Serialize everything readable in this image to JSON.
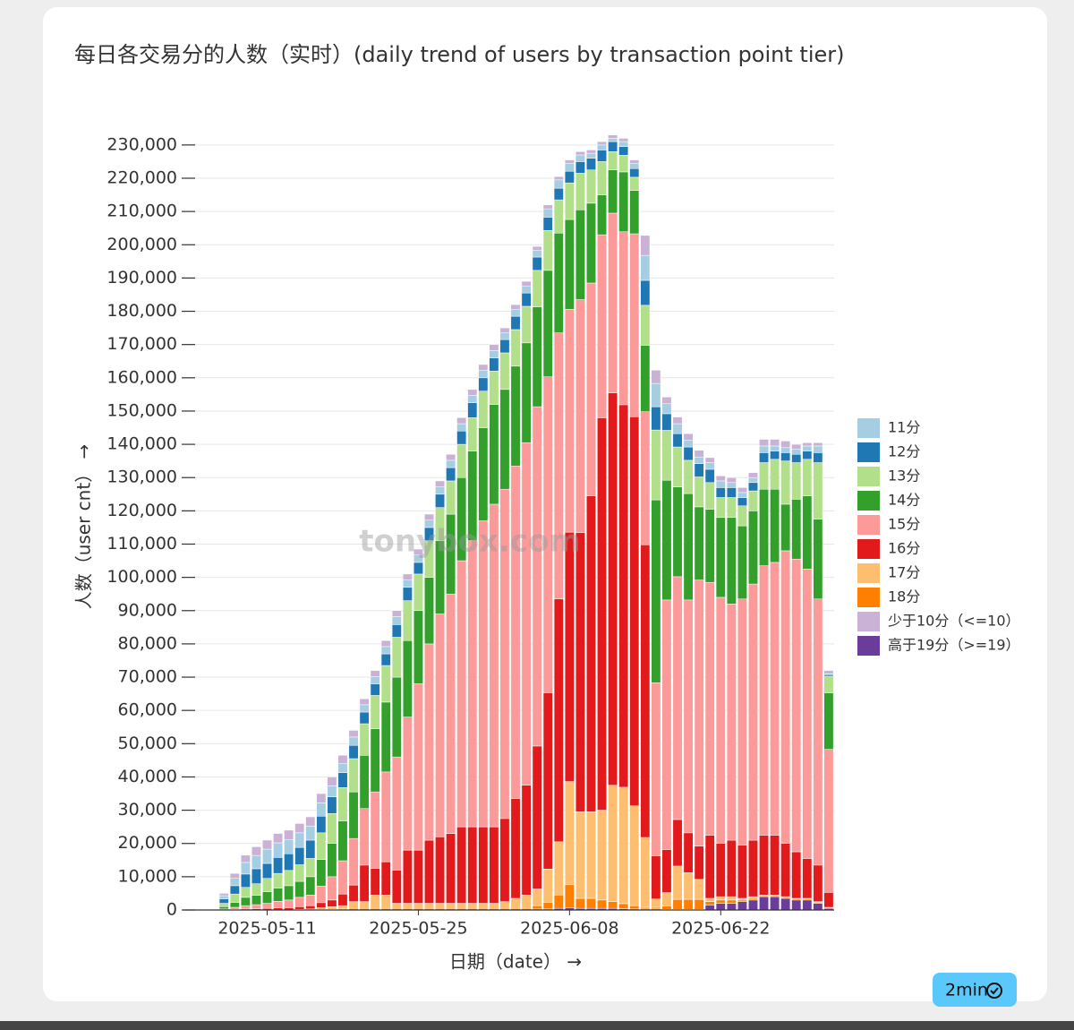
{
  "chart_data": {
    "type": "stacked_bar",
    "title": "每日各交易分的人数（实时）(daily trend of users by transaction point tier)",
    "xlabel": "日期（date） →",
    "ylabel": "人数（user cnt） →",
    "watermark": "tonybox.com",
    "badge": "2min",
    "categories": [
      "2025-05-07",
      "2025-05-08",
      "2025-05-09",
      "2025-05-10",
      "2025-05-11",
      "2025-05-12",
      "2025-05-13",
      "2025-05-14",
      "2025-05-15",
      "2025-05-16",
      "2025-05-17",
      "2025-05-18",
      "2025-05-19",
      "2025-05-20",
      "2025-05-21",
      "2025-05-22",
      "2025-05-23",
      "2025-05-24",
      "2025-05-25",
      "2025-05-26",
      "2025-05-27",
      "2025-05-28",
      "2025-05-29",
      "2025-05-30",
      "2025-05-31",
      "2025-06-01",
      "2025-06-02",
      "2025-06-03",
      "2025-06-04",
      "2025-06-05",
      "2025-06-06",
      "2025-06-07",
      "2025-06-08",
      "2025-06-09",
      "2025-06-10",
      "2025-06-11",
      "2025-06-12",
      "2025-06-13",
      "2025-06-14",
      "2025-06-15",
      "2025-06-16",
      "2025-06-17",
      "2025-06-18",
      "2025-06-19",
      "2025-06-20",
      "2025-06-21",
      "2025-06-22",
      "2025-06-23",
      "2025-06-24",
      "2025-06-25",
      "2025-06-26",
      "2025-06-27",
      "2025-06-28",
      "2025-06-29",
      "2025-06-30",
      "2025-07-01",
      "2025-07-02"
    ],
    "xlim": [
      "2025-05-03",
      "2025-07-03"
    ],
    "xticks": [
      "2025-05-11",
      "2025-05-25",
      "2025-06-08",
      "2025-06-22"
    ],
    "ylim": [
      0,
      234000
    ],
    "yticks": [
      0,
      {
        "value": 10000,
        "label": "10,000"
      },
      {
        "value": 20000,
        "label": "20,000"
      },
      {
        "value": 30000,
        "label": "30,000"
      },
      {
        "value": 40000,
        "label": "40,000"
      },
      {
        "value": 50000,
        "label": "50,000"
      },
      {
        "value": 60000,
        "label": "60,000"
      },
      {
        "value": 70000,
        "label": "70,000"
      },
      {
        "value": 80000,
        "label": "80,000"
      },
      {
        "value": 90000,
        "label": "90,000"
      },
      {
        "value": 100000,
        "label": "100,000"
      },
      {
        "value": 110000,
        "label": "110,000"
      },
      {
        "value": 120000,
        "label": "120,000"
      },
      {
        "value": 130000,
        "label": "130,000"
      },
      {
        "value": 140000,
        "label": "140,000"
      },
      {
        "value": 150000,
        "label": "150,000"
      },
      {
        "value": 160000,
        "label": "160,000"
      },
      {
        "value": 170000,
        "label": "170,000"
      },
      {
        "value": 180000,
        "label": "180,000"
      },
      {
        "value": 190000,
        "label": "190,000"
      },
      {
        "value": 200000,
        "label": "200,000"
      },
      {
        "value": 210000,
        "label": "210,000"
      },
      {
        "value": 220000,
        "label": "220,000"
      },
      {
        "value": 230000,
        "label": "230,000"
      }
    ],
    "grid": true,
    "legend": "right",
    "series": [
      {
        "name": "11分",
        "color": "#a6cee3",
        "values": [
          1000,
          2200,
          3500,
          4000,
          4300,
          4400,
          4300,
          4400,
          4200,
          4000,
          3300,
          2800,
          2500,
          2200,
          2200,
          2200,
          2400,
          2200,
          2200,
          2200,
          2200,
          2200,
          2200,
          2200,
          2200,
          2200,
          2000,
          2000,
          2000,
          2000,
          2500,
          2500,
          2400,
          2000,
          1500,
          1500,
          1000,
          1500,
          1600,
          7500,
          7000,
          3000,
          3000,
          2000,
          2000,
          2000,
          2000,
          1500,
          1500,
          1500,
          2000,
          1500,
          1500,
          1500,
          1500,
          2000,
          200
        ]
      },
      {
        "name": "12分",
        "color": "#1f78b4",
        "values": [
          1300,
          2500,
          4000,
          4500,
          4500,
          4800,
          5000,
          5200,
          5500,
          5000,
          5000,
          4500,
          4000,
          3500,
          3500,
          3500,
          3800,
          4000,
          3500,
          4000,
          4000,
          4000,
          4000,
          4500,
          4000,
          4000,
          4000,
          4000,
          4000,
          4000,
          4000,
          3500,
          3500,
          3500,
          3500,
          3500,
          3000,
          2600,
          2600,
          7500,
          7000,
          5000,
          4000,
          4000,
          4000,
          4000,
          3000,
          3000,
          2500,
          2500,
          3000,
          2500,
          2500,
          2500,
          2500,
          3000,
          500
        ]
      },
      {
        "name": "13分",
        "color": "#b2df8a",
        "values": [
          1000,
          2500,
          3000,
          3500,
          4000,
          4400,
          4600,
          5000,
          5500,
          8000,
          9000,
          10000,
          10000,
          9500,
          10000,
          11000,
          12000,
          12000,
          11000,
          11000,
          10000,
          10000,
          10000,
          10000,
          11000,
          10000,
          11000,
          11000,
          11000,
          11000,
          12000,
          10000,
          11000,
          11000,
          10000,
          10000,
          5500,
          5000,
          4000,
          12000,
          21000,
          15000,
          12000,
          10000,
          9000,
          8000,
          6000,
          6000,
          6000,
          6000,
          8000,
          9000,
          13000,
          11000,
          11000,
          17000,
          5000
        ]
      },
      {
        "name": "14分",
        "color": "#33a02c",
        "values": [
          700,
          1500,
          2500,
          2800,
          3500,
          4000,
          4300,
          4800,
          5500,
          8000,
          10000,
          12000,
          14000,
          16000,
          19000,
          21000,
          24000,
          23000,
          22000,
          20000,
          22000,
          24000,
          25000,
          27000,
          28000,
          30000,
          30000,
          30000,
          30000,
          30000,
          32000,
          30000,
          27000,
          27000,
          24000,
          12000,
          13000,
          18000,
          13000,
          20000,
          55000,
          36000,
          27000,
          32000,
          22000,
          22000,
          24000,
          26000,
          22000,
          22000,
          23000,
          22000,
          14000,
          18000,
          22000,
          24000,
          17000
        ]
      },
      {
        "name": "15分",
        "color": "#fb9a99",
        "values": [
          300,
          600,
          1000,
          1200,
          1500,
          2000,
          2300,
          2800,
          3200,
          5000,
          7000,
          10000,
          14000,
          17000,
          23000,
          27000,
          34000,
          40000,
          50000,
          59000,
          67000,
          72000,
          80000,
          86000,
          92000,
          97000,
          99000,
          100000,
          103000,
          102000,
          95000,
          80000,
          67000,
          70000,
          64000,
          55000,
          54000,
          52000,
          55000,
          40000,
          52000,
          75000,
          73000,
          70000,
          80000,
          76000,
          74000,
          71000,
          74000,
          77000,
          81000,
          82000,
          88000,
          88000,
          87000,
          80000,
          43000
        ]
      },
      {
        "name": "16分",
        "color": "#e31a1c",
        "values": [
          0,
          200,
          300,
          400,
          500,
          600,
          700,
          800,
          1000,
          1500,
          2000,
          3500,
          5000,
          11000,
          8000,
          10000,
          10000,
          16000,
          16000,
          19000,
          20000,
          21000,
          23000,
          23000,
          23000,
          23000,
          25000,
          30000,
          33000,
          43000,
          53000,
          73000,
          75000,
          84000,
          95000,
          118000,
          118000,
          115000,
          117000,
          88000,
          13000,
          13000,
          14000,
          12000,
          10000,
          19000,
          16000,
          17000,
          16000,
          17000,
          18000,
          18000,
          16000,
          14000,
          12000,
          11000,
          4500
        ]
      },
      {
        "name": "17分",
        "color": "#fdbf6f",
        "values": [
          0,
          0,
          0,
          0,
          0,
          0,
          0,
          200,
          300,
          500,
          800,
          1000,
          2000,
          2000,
          4000,
          4000,
          1500,
          1500,
          1500,
          1500,
          1500,
          1500,
          1500,
          1500,
          1500,
          1500,
          2000,
          3000,
          4000,
          5000,
          10000,
          16000,
          31000,
          26000,
          26000,
          27000,
          35000,
          35000,
          30000,
          21000,
          2500,
          4000,
          10000,
          8000,
          6000,
          1000,
          1000,
          1000,
          500,
          500,
          200,
          200,
          200,
          200,
          200,
          200,
          100
        ]
      },
      {
        "name": "18分",
        "color": "#ff7f00",
        "values": [
          0,
          0,
          0,
          0,
          0,
          0,
          0,
          0,
          0,
          200,
          200,
          300,
          500,
          500,
          500,
          500,
          500,
          500,
          500,
          500,
          500,
          500,
          500,
          500,
          500,
          500,
          500,
          500,
          500,
          1000,
          2000,
          4000,
          7000,
          3000,
          3000,
          2500,
          2000,
          1500,
          1000,
          500,
          500,
          1000,
          3000,
          3000,
          3000,
          1000,
          1000,
          1000,
          500,
          500,
          300,
          300,
          300,
          300,
          300,
          300,
          200
        ]
      },
      {
        "name": "少于10分（<=10）",
        "color": "#cab2d6",
        "values": [
          700,
          1500,
          2200,
          2600,
          2700,
          2800,
          2800,
          2800,
          2800,
          2800,
          2700,
          2400,
          2000,
          1800,
          1800,
          1800,
          1800,
          1800,
          1800,
          1800,
          1800,
          1800,
          1800,
          1800,
          1800,
          1800,
          1500,
          1500,
          1500,
          1200,
          1200,
          1000,
          1000,
          1000,
          1000,
          1000,
          1000,
          1000,
          1000,
          6000,
          4000,
          2000,
          2000,
          2000,
          2000,
          1500,
          1500,
          1500,
          1500,
          1500,
          2000,
          2000,
          2000,
          1500,
          1000,
          1000,
          1000
        ]
      },
      {
        "name": "高于19分（>=19）",
        "color": "#6a3d9a",
        "values": [
          0,
          0,
          0,
          0,
          0,
          0,
          0,
          0,
          0,
          0,
          0,
          0,
          0,
          0,
          0,
          0,
          0,
          0,
          0,
          0,
          0,
          0,
          0,
          0,
          0,
          0,
          0,
          0,
          0,
          300,
          300,
          500,
          600,
          500,
          500,
          500,
          500,
          400,
          300,
          300,
          300,
          200,
          200,
          200,
          200,
          1500,
          2000,
          2000,
          2500,
          3000,
          4000,
          4000,
          3500,
          3000,
          3000,
          2000,
          500
        ]
      }
    ]
  }
}
